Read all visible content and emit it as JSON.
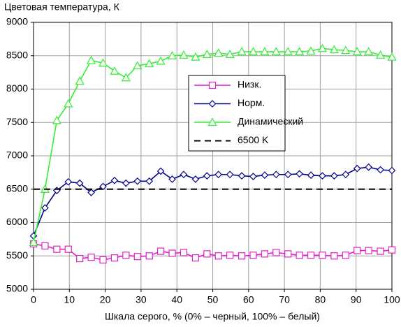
{
  "chart_data": {
    "type": "line",
    "title": "Цветовая температура, К",
    "xlabel": "Шкала серого, % (0% – черный, 100% – белый)",
    "x": [
      0,
      3.2,
      6.5,
      9.7,
      12.9,
      16.1,
      19.4,
      22.6,
      25.8,
      29,
      32.3,
      35.5,
      38.7,
      41.9,
      45.2,
      48.4,
      51.6,
      54.8,
      58.1,
      61.3,
      64.5,
      67.7,
      71,
      74.2,
      77.4,
      80.6,
      83.9,
      87.1,
      90.3,
      93.5,
      96.8,
      100
    ],
    "series": [
      {
        "name": "Низк.",
        "color": "#e020c8",
        "marker": "square",
        "values": [
          5680,
          5650,
          5600,
          5600,
          5460,
          5480,
          5440,
          5470,
          5510,
          5490,
          5500,
          5570,
          5540,
          5550,
          5470,
          5530,
          5500,
          5510,
          5500,
          5510,
          5530,
          5550,
          5530,
          5510,
          5510,
          5510,
          5500,
          5510,
          5580,
          5580,
          5570,
          5590
        ]
      },
      {
        "name": "Норм.",
        "color": "#00008c",
        "marker": "diamond",
        "values": [
          5800,
          6220,
          6480,
          6610,
          6590,
          6450,
          6540,
          6630,
          6590,
          6620,
          6620,
          6770,
          6650,
          6720,
          6650,
          6700,
          6720,
          6720,
          6700,
          6690,
          6710,
          6720,
          6720,
          6730,
          6710,
          6700,
          6700,
          6720,
          6810,
          6830,
          6790,
          6780
        ]
      },
      {
        "name": "Динамический",
        "color": "#33ee33",
        "marker": "triangle",
        "values": [
          5700,
          6500,
          7530,
          7780,
          8120,
          8430,
          8390,
          8270,
          8170,
          8350,
          8380,
          8420,
          8500,
          8510,
          8480,
          8520,
          8540,
          8520,
          8560,
          8560,
          8560,
          8560,
          8560,
          8560,
          8570,
          8610,
          8590,
          8580,
          8560,
          8560,
          8510,
          8480
        ]
      },
      {
        "name": "6500 K",
        "color": "#000000",
        "marker": "none",
        "dash": true,
        "x": [
          0,
          100
        ],
        "values": [
          6500,
          6500
        ]
      }
    ],
    "xlim": [
      0,
      100
    ],
    "xticks": [
      0,
      10,
      20,
      30,
      40,
      50,
      60,
      70,
      80,
      90,
      100
    ],
    "ylim": [
      5000,
      9000
    ],
    "yticks": [
      5000,
      5500,
      6000,
      6500,
      7000,
      7500,
      8000,
      8500,
      9000
    ],
    "grid": true
  }
}
